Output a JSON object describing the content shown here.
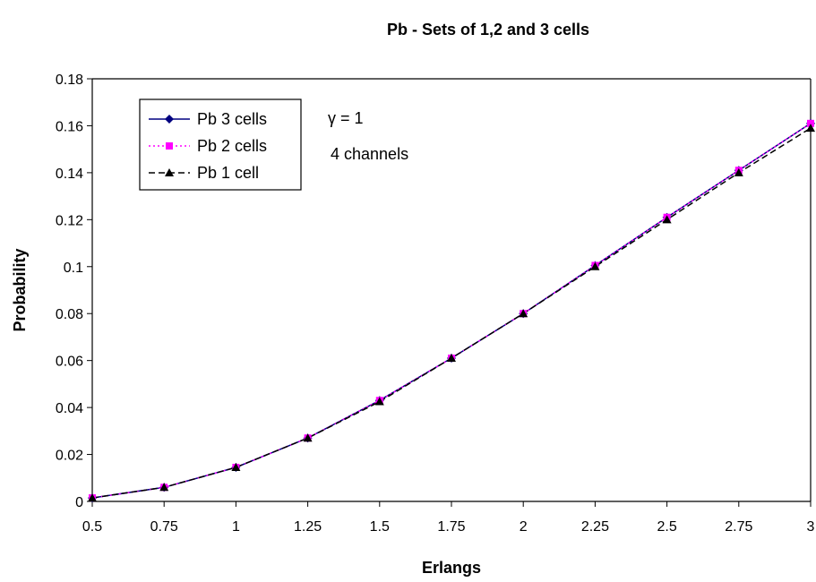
{
  "chart_data": {
    "type": "line",
    "title": "Pb - Sets of 1,2 and 3 cells",
    "xlabel": "Erlangs",
    "ylabel": "Probability",
    "x": [
      0.5,
      0.75,
      1,
      1.25,
      1.5,
      1.75,
      2,
      2.25,
      2.5,
      2.75,
      3
    ],
    "x_tick_labels": [
      "0.5",
      "0.75",
      "1",
      "1.25",
      "1.5",
      "1.75",
      "2",
      "2.25",
      "2.5",
      "2.75",
      "3"
    ],
    "y_tick_labels": [
      "0",
      "0.02",
      "0.04",
      "0.06",
      "0.08",
      "0.1",
      "0.12",
      "0.14",
      "0.16",
      "0.18"
    ],
    "xlim": [
      0.5,
      3
    ],
    "ylim": [
      0,
      0.18
    ],
    "grid": false,
    "legend_position": "top-left",
    "series": [
      {
        "name": "Pb 3 cells",
        "color": "#000080",
        "line_style": "solid",
        "marker": "diamond",
        "values": [
          0.0015,
          0.006,
          0.0145,
          0.027,
          0.043,
          0.061,
          0.08,
          0.1005,
          0.121,
          0.141,
          0.161
        ]
      },
      {
        "name": "Pb 2 cells",
        "color": "#FF00FF",
        "line_style": "dotted",
        "marker": "square",
        "values": [
          0.0015,
          0.006,
          0.0145,
          0.027,
          0.043,
          0.061,
          0.08,
          0.1005,
          0.121,
          0.141,
          0.161
        ]
      },
      {
        "name": "Pb 1 cell",
        "color": "#000000",
        "line_style": "dashed",
        "marker": "triangle",
        "values": [
          0.0015,
          0.006,
          0.0145,
          0.027,
          0.0425,
          0.061,
          0.08,
          0.1,
          0.12,
          0.14,
          0.159
        ]
      }
    ],
    "annotations": [
      "γ = 1",
      "4 channels"
    ]
  }
}
